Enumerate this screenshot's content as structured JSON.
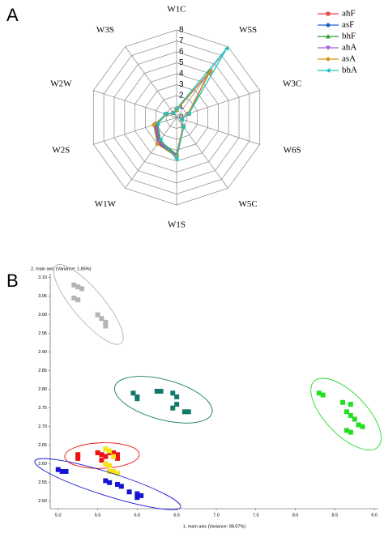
{
  "chart_data": [
    {
      "type": "radar",
      "label": "A",
      "categories": [
        "W1C",
        "W5S",
        "W3C",
        "W6S",
        "W5C",
        "W1S",
        "W1W",
        "W2S",
        "W2W",
        "W3S"
      ],
      "rlim": [
        0,
        8
      ],
      "rticks": [
        0,
        1,
        2,
        3,
        4,
        5,
        6,
        7,
        8
      ],
      "grid": true,
      "legend": "top-right",
      "series": [
        {
          "name": "ahF",
          "color": "#e8474c",
          "marker": "square",
          "values": [
            0.7,
            5.0,
            1.1,
            0.5,
            1.0,
            3.5,
            2.7,
            1.9,
            1.0,
            0.5
          ]
        },
        {
          "name": "asF",
          "color": "#1f5fc8",
          "marker": "circle",
          "values": [
            0.7,
            5.2,
            1.1,
            0.5,
            1.0,
            3.6,
            2.9,
            2.1,
            1.0,
            0.5
          ]
        },
        {
          "name": "bhF",
          "color": "#2ca02c",
          "marker": "triangle-up",
          "values": [
            0.7,
            5.0,
            1.2,
            0.5,
            1.0,
            3.4,
            2.6,
            1.8,
            1.0,
            0.5
          ]
        },
        {
          "name": "ahA",
          "color": "#a25fd6",
          "marker": "triangle-down",
          "values": [
            0.7,
            5.1,
            1.1,
            0.5,
            1.0,
            3.5,
            2.8,
            2.0,
            1.0,
            0.5
          ]
        },
        {
          "name": "asA",
          "color": "#d4941a",
          "marker": "diamond",
          "values": [
            0.7,
            5.3,
            1.1,
            0.5,
            1.0,
            3.6,
            3.0,
            2.2,
            1.0,
            0.5
          ]
        },
        {
          "name": "bhA",
          "color": "#1dc1c1",
          "marker": "triangle-left",
          "values": [
            0.8,
            7.8,
            1.2,
            0.5,
            1.1,
            3.8,
            2.5,
            1.8,
            1.1,
            0.5
          ]
        }
      ]
    },
    {
      "type": "scatter",
      "label": "B",
      "xlabel": "1. main axis (Variance: 98.07%)",
      "ylabel": "2. main axis (Variance: 1.85%)",
      "xlim": [
        4.9,
        9.05
      ],
      "ylim": [
        2.48,
        3.11
      ],
      "xticks": [
        {
          "value": 5,
          "label": "5.0"
        },
        5.5,
        {
          "value": 6,
          "label": "6.0"
        },
        6.5,
        {
          "value": 7,
          "label": "7.0"
        },
        7.5,
        {
          "value": 8,
          "label": "8.0"
        },
        8.5,
        {
          "value": 9,
          "label": "9.0"
        }
      ],
      "yticks": [
        {
          "value": 2.5,
          "label": "2.50"
        },
        2.55,
        {
          "value": 2.6,
          "label": "2.60"
        },
        2.65,
        {
          "value": 2.7,
          "label": "2.70"
        },
        2.75,
        {
          "value": 2.8,
          "label": "2.80"
        },
        2.85,
        {
          "value": 2.9,
          "label": "2.90"
        },
        2.95,
        {
          "value": 3,
          "label": "3.00"
        },
        3.05,
        {
          "value": 3.1,
          "label": "3.10"
        }
      ],
      "series": [
        {
          "color": "#b4b4b4",
          "ellipse": true,
          "x": [
            5.2,
            5.25,
            5.3,
            5.2,
            5.25,
            5.5,
            5.55,
            5.6,
            5.6
          ],
          "y": [
            3.08,
            3.075,
            3.07,
            3.045,
            3.04,
            3.0,
            2.99,
            2.98,
            2.97
          ]
        },
        {
          "color": "#137a6a",
          "ellipse": true,
          "x": [
            5.95,
            6.0,
            6.0,
            6.25,
            6.3,
            6.45,
            6.5,
            6.5,
            6.45,
            6.6,
            6.65
          ],
          "y": [
            2.79,
            2.78,
            2.775,
            2.795,
            2.795,
            2.79,
            2.78,
            2.76,
            2.75,
            2.74,
            2.74
          ]
        },
        {
          "color": "#22dd22",
          "ellipse": true,
          "x": [
            8.3,
            8.35,
            8.6,
            8.7,
            8.65,
            8.7,
            8.75,
            8.8,
            8.85,
            8.65,
            8.7
          ],
          "y": [
            2.79,
            2.785,
            2.765,
            2.76,
            2.74,
            2.73,
            2.72,
            2.705,
            2.7,
            2.69,
            2.685
          ]
        },
        {
          "color": "#ee1111",
          "ellipse": true,
          "x": [
            5.25,
            5.25,
            5.5,
            5.55,
            5.6,
            5.65,
            5.7,
            5.75,
            5.75,
            5.55
          ],
          "y": [
            2.625,
            2.615,
            2.63,
            2.625,
            2.62,
            2.63,
            2.63,
            2.625,
            2.615,
            2.61
          ]
        },
        {
          "color": "#f5e313",
          "ellipse": false,
          "x": [
            5.6,
            5.65,
            5.7,
            5.6,
            5.65,
            5.7,
            5.75,
            5.65
          ],
          "y": [
            2.64,
            2.635,
            2.62,
            2.6,
            2.595,
            2.58,
            2.575,
            2.58
          ]
        },
        {
          "color": "#1414d2",
          "ellipse": true,
          "x": [
            5.0,
            5.1,
            5.05,
            5.6,
            5.65,
            5.75,
            5.8,
            5.9,
            6.0,
            6.05,
            6.0
          ],
          "y": [
            2.585,
            2.58,
            2.58,
            2.555,
            2.55,
            2.545,
            2.54,
            2.525,
            2.52,
            2.515,
            2.51
          ]
        }
      ]
    }
  ]
}
